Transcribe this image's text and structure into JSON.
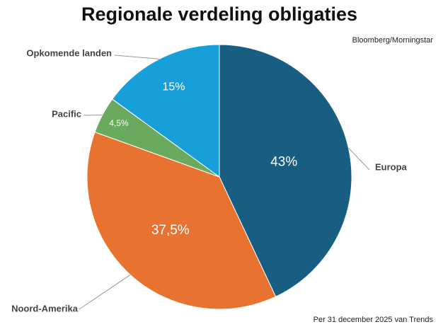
{
  "chart_data": {
    "type": "pie",
    "title": "Regionale verdeling obligaties",
    "source": "Bloomberg/Morningstar",
    "note": "Per 31 december 2025 van Trends",
    "categories": [
      "Europa",
      "Noord-Amerika",
      "Pacific",
      "Opkomende landen"
    ],
    "values": [
      43,
      37.5,
      4.5,
      15
    ],
    "value_labels": [
      "43%",
      "37,5%",
      "4,5%",
      "15%"
    ],
    "colors": [
      "#175e82",
      "#e8722f",
      "#6aaa5e",
      "#169fd8"
    ]
  }
}
